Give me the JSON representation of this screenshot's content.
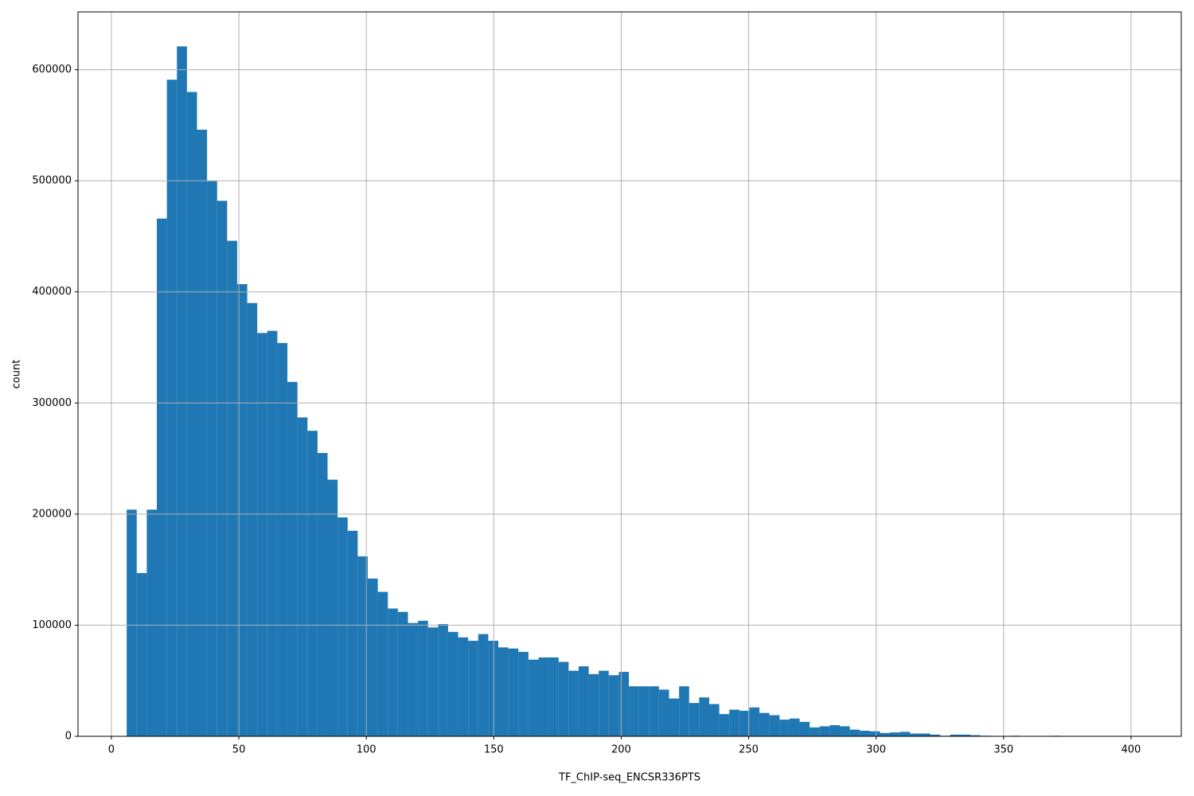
{
  "chart_data": {
    "type": "histogram",
    "xlabel": "TF_ChIP-seq_ENCSR336PTS",
    "ylabel": "count",
    "color": "#1f77b4",
    "grid": true,
    "xlim": [
      -13.1,
      419.7
    ],
    "ylim": [
      0,
      652000
    ],
    "xticks": [
      0,
      50,
      100,
      150,
      200,
      250,
      300,
      350,
      400
    ],
    "yticks": [
      0,
      100000,
      200000,
      300000,
      400000,
      500000,
      600000
    ],
    "bins": [
      6,
      9.94,
      13.88,
      17.82,
      21.76,
      25.7,
      29.64,
      33.58,
      37.52,
      41.46,
      45.4,
      49.34,
      53.28,
      57.22,
      61.16,
      65.1,
      69.04,
      72.98,
      76.92,
      80.86,
      84.8,
      88.74,
      92.68,
      96.62,
      100.56,
      104.5,
      108.44,
      112.38,
      116.32,
      120.26,
      124.2,
      128.14,
      132.08,
      136.02,
      139.96,
      143.9,
      147.84,
      151.78,
      155.72,
      159.66,
      163.6,
      167.54,
      171.48,
      175.42,
      179.36,
      183.3,
      187.24,
      191.18,
      195.12,
      199.06,
      203,
      206.94,
      210.88,
      214.82,
      218.76,
      222.7,
      226.64,
      230.58,
      234.52,
      238.46,
      242.4,
      246.34,
      250.28,
      254.22,
      258.16,
      262.1,
      266.04,
      269.98,
      273.92,
      277.86,
      281.8,
      285.74,
      289.68,
      293.62,
      297.56,
      301.5,
      305.44,
      309.38,
      313.32,
      317.26,
      321.2,
      325.14,
      329.08,
      333.02,
      336.96,
      340.9,
      344.84,
      348.78,
      352.72,
      356.66,
      360.6,
      364.54,
      368.48,
      372.42,
      376.36,
      380.3,
      384.24,
      388.18,
      392.12,
      396.06,
      400
    ],
    "counts": [
      204000,
      147000,
      204000,
      466000,
      591000,
      621000,
      580000,
      546000,
      500000,
      482000,
      446000,
      407000,
      390000,
      363000,
      365000,
      354000,
      319000,
      287000,
      275000,
      255000,
      231000,
      197000,
      185000,
      162000,
      142000,
      130000,
      115000,
      112000,
      102000,
      104000,
      98000,
      101000,
      94000,
      89000,
      86000,
      92000,
      86000,
      80000,
      79000,
      76000,
      69000,
      71000,
      71000,
      67000,
      59000,
      63000,
      56000,
      59000,
      55000,
      58000,
      45000,
      45000,
      45000,
      42000,
      34000,
      45000,
      30000,
      35000,
      29000,
      20000,
      24000,
      23000,
      26000,
      21000,
      19000,
      15000,
      16000,
      13000,
      8000,
      9000,
      10000,
      9000,
      6000,
      5000,
      4500,
      3000,
      3500,
      4000,
      2500,
      2500,
      1500,
      500,
      1500,
      1500,
      1000,
      500,
      0,
      0,
      500,
      0,
      0,
      0,
      500,
      0,
      0,
      0,
      0,
      0,
      0,
      0
    ]
  }
}
